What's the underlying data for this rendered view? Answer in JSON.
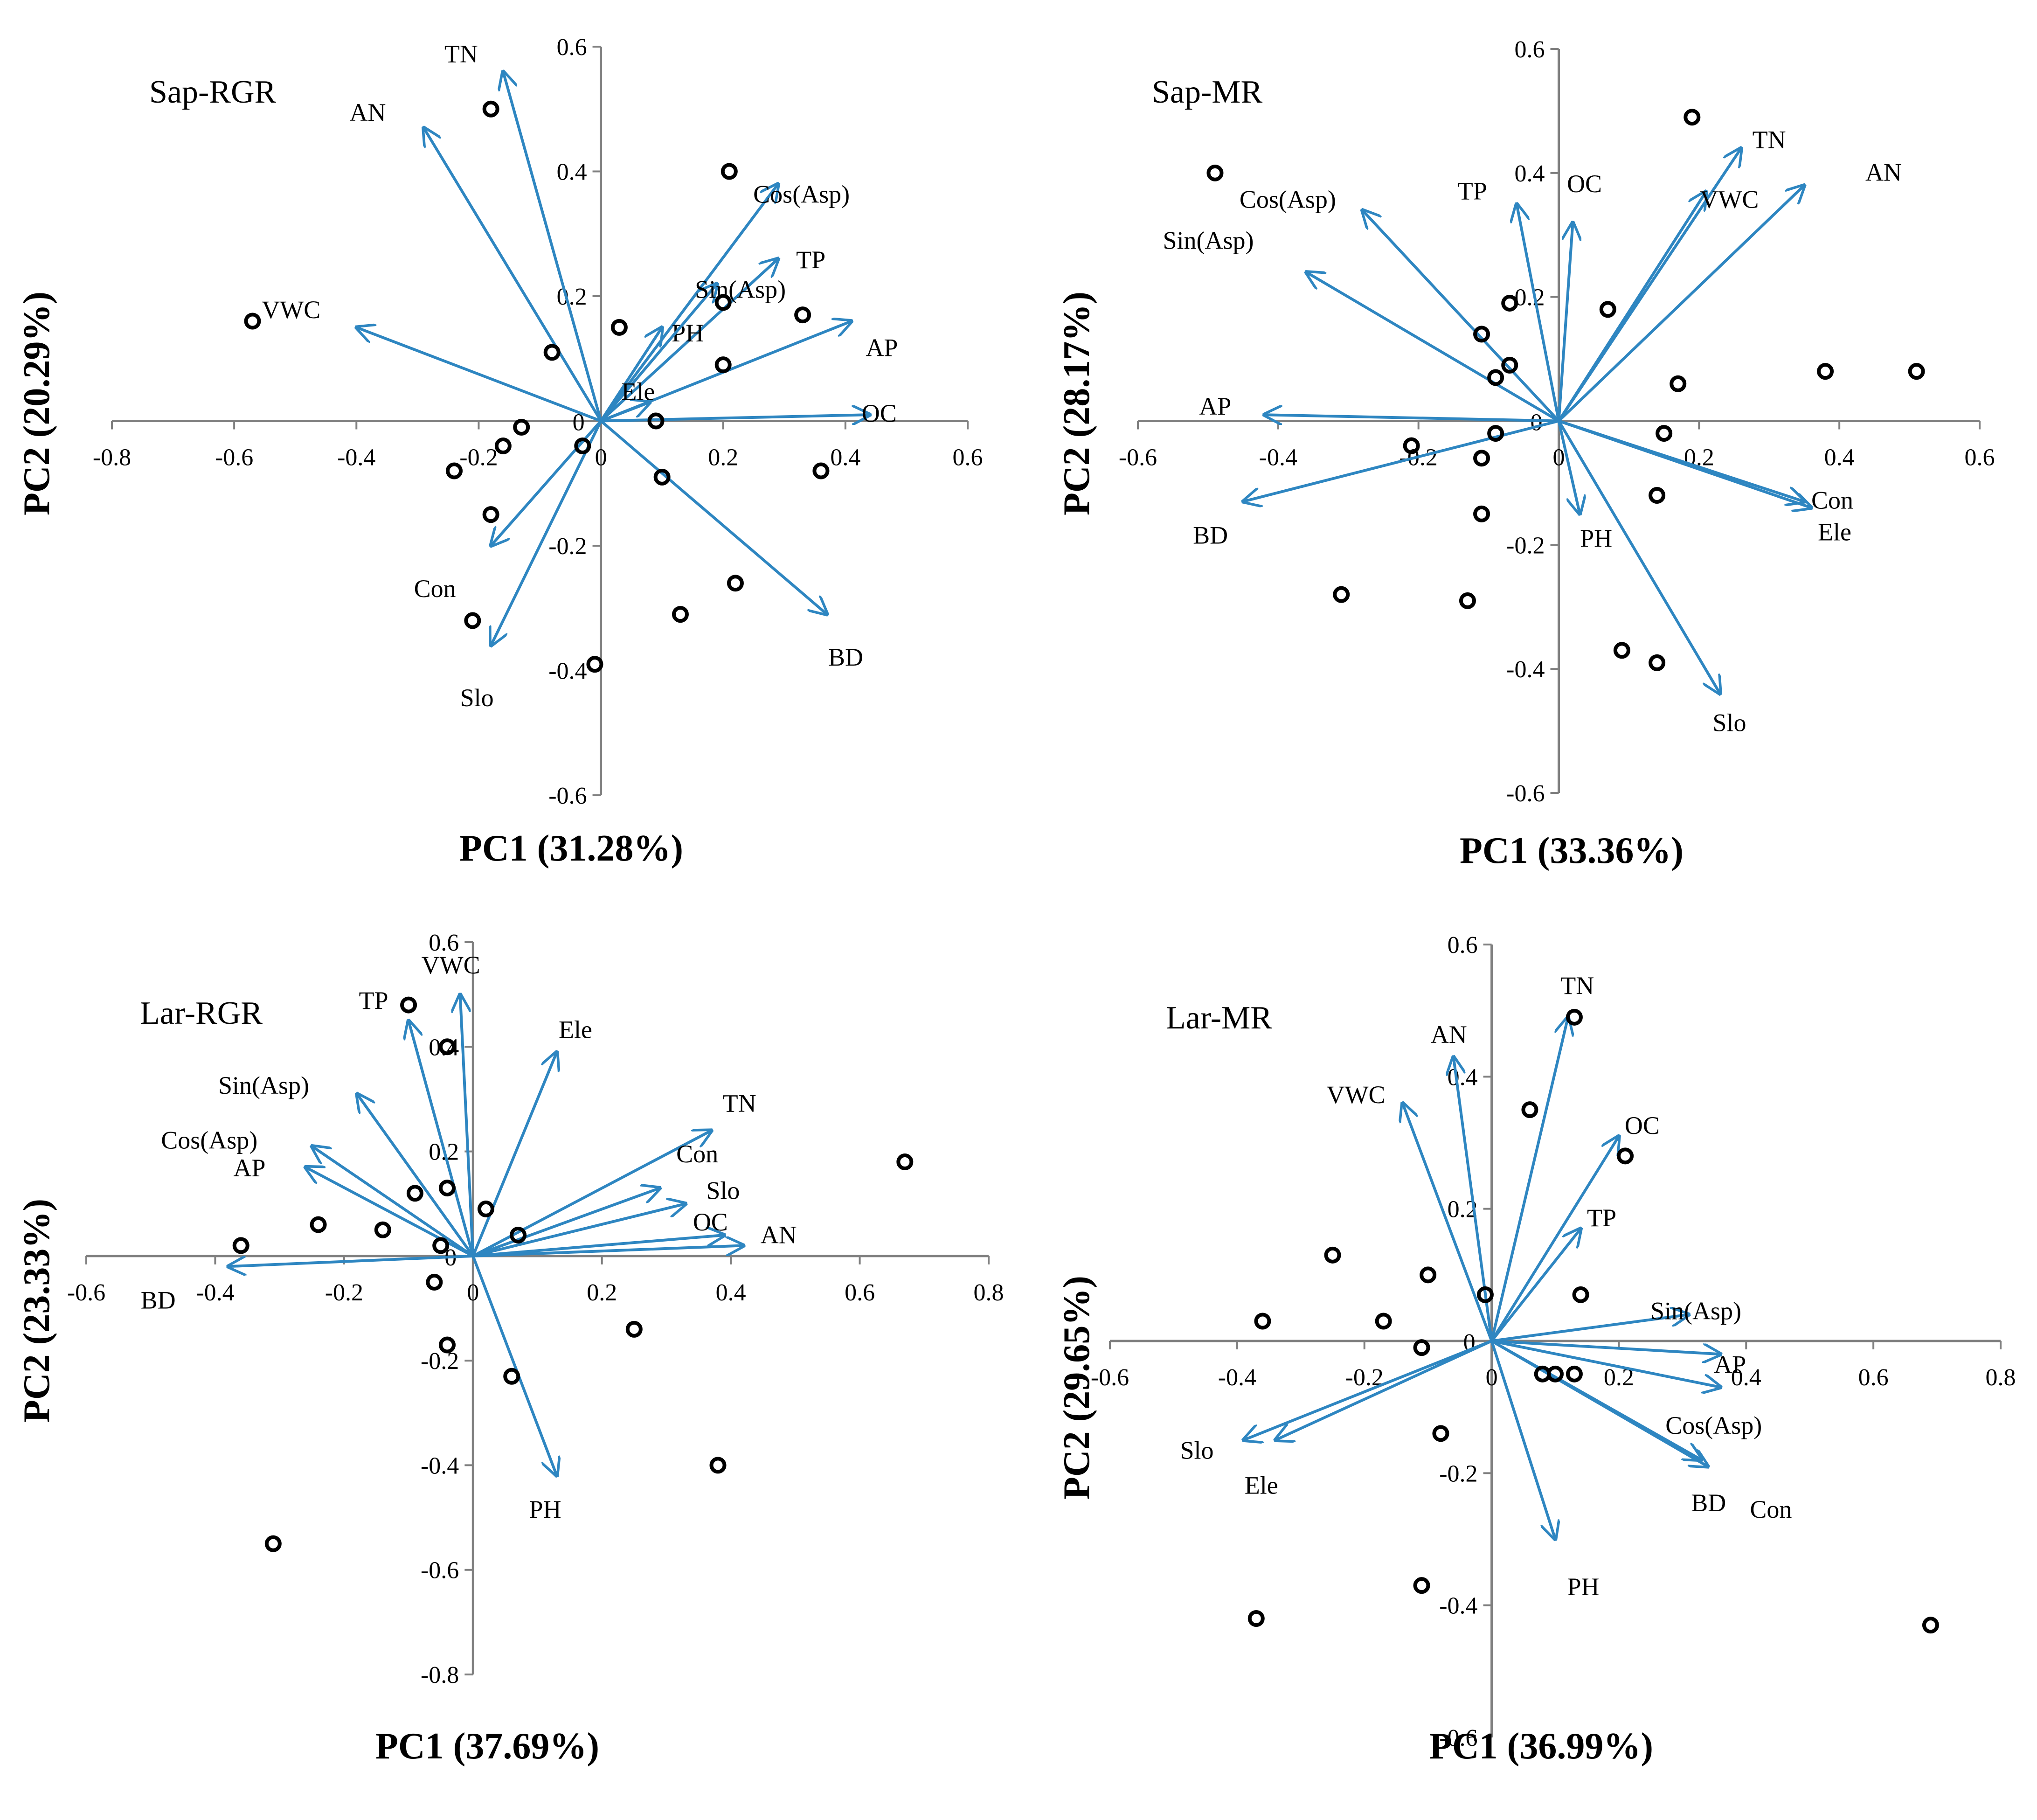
{
  "figure": {
    "arrow_color": "#2e86c1",
    "axis_color": "#808080",
    "point_color": "#000000"
  },
  "chart_data": [
    {
      "type": "scatter",
      "title": "Sap-RGR",
      "xlabel": "PC1 (31.28%)",
      "ylabel": "PC2 (20.29%)",
      "xlim": [
        -0.8,
        0.6
      ],
      "ylim": [
        -0.6,
        0.6
      ],
      "xticks": [
        -0.8,
        -0.6,
        -0.4,
        -0.2,
        0,
        0.2,
        0.4,
        0.6
      ],
      "yticks": [
        -0.6,
        -0.4,
        -0.2,
        0,
        0.2,
        0.4,
        0.6
      ],
      "xtick_labels": [
        "-0.8",
        "-0.6",
        "-0.4",
        "-0.2",
        "0",
        "0.2",
        "0.4",
        "0.6"
      ],
      "ytick_labels": [
        "-0.6",
        "-0.4",
        "-0.2",
        "0",
        "0.2",
        "0.4",
        "0.6"
      ],
      "loadings": [
        {
          "name": "TN",
          "x": -0.16,
          "y": 0.56
        },
        {
          "name": "AN",
          "x": -0.29,
          "y": 0.47
        },
        {
          "name": "Cos(Asp)",
          "x": 0.29,
          "y": 0.38
        },
        {
          "name": "TP",
          "x": 0.29,
          "y": 0.26
        },
        {
          "name": "PH",
          "x": 0.1,
          "y": 0.15
        },
        {
          "name": "Sin(Asp)",
          "x": 0.19,
          "y": 0.22
        },
        {
          "name": "AP",
          "x": 0.41,
          "y": 0.16
        },
        {
          "name": "OC",
          "x": 0.44,
          "y": 0.01
        },
        {
          "name": "Ele",
          "x": 0.08,
          "y": 0.03
        },
        {
          "name": "VWC",
          "x": -0.4,
          "y": 0.15
        },
        {
          "name": "Con",
          "x": -0.18,
          "y": -0.2
        },
        {
          "name": "Slo",
          "x": -0.18,
          "y": -0.36
        },
        {
          "name": "BD",
          "x": 0.37,
          "y": -0.31
        }
      ],
      "scores": [
        {
          "x": -0.18,
          "y": 0.5
        },
        {
          "x": 0.21,
          "y": 0.4
        },
        {
          "x": -0.57,
          "y": 0.16
        },
        {
          "x": 0.03,
          "y": 0.15
        },
        {
          "x": 0.2,
          "y": 0.19
        },
        {
          "x": 0.33,
          "y": 0.17
        },
        {
          "x": -0.08,
          "y": 0.11
        },
        {
          "x": 0.2,
          "y": 0.09
        },
        {
          "x": 0.09,
          "y": 0.0
        },
        {
          "x": -0.13,
          "y": -0.01
        },
        {
          "x": -0.16,
          "y": -0.04
        },
        {
          "x": -0.03,
          "y": -0.04
        },
        {
          "x": -0.24,
          "y": -0.08
        },
        {
          "x": 0.36,
          "y": -0.08
        },
        {
          "x": 0.1,
          "y": -0.09
        },
        {
          "x": -0.18,
          "y": -0.15
        },
        {
          "x": 0.22,
          "y": -0.26
        },
        {
          "x": 0.13,
          "y": -0.31
        },
        {
          "x": -0.21,
          "y": -0.32
        },
        {
          "x": -0.01,
          "y": -0.39
        }
      ]
    },
    {
      "type": "scatter",
      "title": "Sap-MR",
      "xlabel": "PC1 (33.36%)",
      "ylabel": "PC2 (28.17%)",
      "xlim": [
        -0.6,
        0.6
      ],
      "ylim": [
        -0.6,
        0.6
      ],
      "xticks": [
        -0.6,
        -0.4,
        -0.2,
        0,
        0.2,
        0.4,
        0.6
      ],
      "yticks": [
        -0.6,
        -0.4,
        -0.2,
        0,
        0.2,
        0.4,
        0.6
      ],
      "xtick_labels": [
        "-0.6",
        "-0.4",
        "-0.2",
        "0",
        "0.2",
        "0.4",
        "0.6"
      ],
      "ytick_labels": [
        "-0.6",
        "-0.4",
        "-0.2",
        "0",
        "0.2",
        "0.4",
        "0.6"
      ],
      "loadings": [
        {
          "name": "TN",
          "x": 0.26,
          "y": 0.44
        },
        {
          "name": "VWC",
          "x": 0.21,
          "y": 0.37
        },
        {
          "name": "AN",
          "x": 0.35,
          "y": 0.38
        },
        {
          "name": "OC",
          "x": 0.02,
          "y": 0.32
        },
        {
          "name": "TP",
          "x": -0.06,
          "y": 0.35
        },
        {
          "name": "Cos(Asp)",
          "x": -0.28,
          "y": 0.34
        },
        {
          "name": "Sin(Asp)",
          "x": -0.36,
          "y": 0.24
        },
        {
          "name": "AP",
          "x": -0.42,
          "y": 0.01
        },
        {
          "name": "BD",
          "x": -0.45,
          "y": -0.13
        },
        {
          "name": "PH",
          "x": 0.03,
          "y": -0.15
        },
        {
          "name": "Slo",
          "x": 0.23,
          "y": -0.44
        },
        {
          "name": "Con",
          "x": 0.35,
          "y": -0.13
        },
        {
          "name": "Ele",
          "x": 0.36,
          "y": -0.14
        }
      ],
      "scores": [
        {
          "x": 0.19,
          "y": 0.49
        },
        {
          "x": -0.49,
          "y": 0.4
        },
        {
          "x": -0.07,
          "y": 0.19
        },
        {
          "x": 0.07,
          "y": 0.18
        },
        {
          "x": -0.11,
          "y": 0.14
        },
        {
          "x": -0.07,
          "y": 0.09
        },
        {
          "x": -0.09,
          "y": 0.07
        },
        {
          "x": 0.17,
          "y": 0.06
        },
        {
          "x": 0.38,
          "y": 0.08
        },
        {
          "x": 0.51,
          "y": 0.08
        },
        {
          "x": -0.09,
          "y": -0.02
        },
        {
          "x": 0.15,
          "y": -0.02
        },
        {
          "x": -0.21,
          "y": -0.04
        },
        {
          "x": -0.11,
          "y": -0.06
        },
        {
          "x": 0.14,
          "y": -0.12
        },
        {
          "x": -0.11,
          "y": -0.15
        },
        {
          "x": -0.31,
          "y": -0.28
        },
        {
          "x": -0.13,
          "y": -0.29
        },
        {
          "x": 0.09,
          "y": -0.37
        },
        {
          "x": 0.14,
          "y": -0.39
        }
      ]
    },
    {
      "type": "scatter",
      "title": "Lar-RGR",
      "xlabel": "PC1 (37.69%)",
      "ylabel": "PC2 (23.33%)",
      "xlim": [
        -0.6,
        0.8
      ],
      "ylim": [
        -0.8,
        0.6
      ],
      "xticks": [
        -0.6,
        -0.4,
        -0.2,
        0,
        0.2,
        0.4,
        0.6,
        0.8
      ],
      "yticks": [
        -0.8,
        -0.6,
        -0.4,
        -0.2,
        0,
        0.2,
        0.4,
        0.6
      ],
      "xtick_labels": [
        "-0.6",
        "-0.4",
        "-0.2",
        "0",
        "0.2",
        "0.4",
        "0.6",
        "0.8"
      ],
      "ytick_labels": [
        "-0.8",
        "-0.6",
        "-0.4",
        "-0.2",
        "0",
        "0.2",
        "0.4",
        "0.6"
      ],
      "loadings": [
        {
          "name": "TP",
          "x": -0.1,
          "y": 0.45
        },
        {
          "name": "VWC",
          "x": -0.02,
          "y": 0.5
        },
        {
          "name": "Ele",
          "x": 0.13,
          "y": 0.39
        },
        {
          "name": "Sin(Asp)",
          "x": -0.18,
          "y": 0.31
        },
        {
          "name": "Cos(Asp)",
          "x": -0.25,
          "y": 0.21
        },
        {
          "name": "AP",
          "x": -0.26,
          "y": 0.17
        },
        {
          "name": "TN",
          "x": 0.37,
          "y": 0.24
        },
        {
          "name": "Con",
          "x": 0.29,
          "y": 0.13
        },
        {
          "name": "Slo",
          "x": 0.33,
          "y": 0.1
        },
        {
          "name": "OC",
          "x": 0.39,
          "y": 0.04
        },
        {
          "name": "AN",
          "x": 0.42,
          "y": 0.02
        },
        {
          "name": "BD",
          "x": -0.38,
          "y": -0.02
        },
        {
          "name": "PH",
          "x": 0.13,
          "y": -0.42
        }
      ],
      "scores": [
        {
          "x": -0.1,
          "y": 0.48
        },
        {
          "x": -0.04,
          "y": 0.4
        },
        {
          "x": 0.67,
          "y": 0.18
        },
        {
          "x": -0.09,
          "y": 0.12
        },
        {
          "x": -0.04,
          "y": 0.13
        },
        {
          "x": 0.02,
          "y": 0.09
        },
        {
          "x": -0.24,
          "y": 0.06
        },
        {
          "x": -0.14,
          "y": 0.05
        },
        {
          "x": 0.07,
          "y": 0.04
        },
        {
          "x": -0.36,
          "y": 0.02
        },
        {
          "x": -0.05,
          "y": 0.02
        },
        {
          "x": -0.06,
          "y": -0.05
        },
        {
          "x": 0.25,
          "y": -0.14
        },
        {
          "x": -0.04,
          "y": -0.17
        },
        {
          "x": 0.06,
          "y": -0.23
        },
        {
          "x": 0.38,
          "y": -0.4
        },
        {
          "x": -0.31,
          "y": -0.55
        }
      ]
    },
    {
      "type": "scatter",
      "title": "Lar-MR",
      "xlabel": "PC1 (36.99%)",
      "ylabel": "PC2 (29.65%)",
      "xlim": [
        -0.6,
        0.8
      ],
      "ylim": [
        -0.6,
        0.6
      ],
      "xticks": [
        -0.6,
        -0.4,
        -0.2,
        0,
        0.2,
        0.4,
        0.6,
        0.8
      ],
      "yticks": [
        -0.6,
        -0.4,
        -0.2,
        0,
        0.2,
        0.4,
        0.6
      ],
      "xtick_labels": [
        "-0.6",
        "-0.4",
        "-0.2",
        "0",
        "0.2",
        "0.4",
        "0.6",
        "0.8"
      ],
      "ytick_labels": [
        "-0.6",
        "-0.4",
        "-0.2",
        "0",
        "0.2",
        "0.4",
        "0.6"
      ],
      "loadings": [
        {
          "name": "TN",
          "x": 0.12,
          "y": 0.49
        },
        {
          "name": "AN",
          "x": -0.06,
          "y": 0.43
        },
        {
          "name": "VWC",
          "x": -0.14,
          "y": 0.36
        },
        {
          "name": "OC",
          "x": 0.2,
          "y": 0.31
        },
        {
          "name": "TP",
          "x": 0.14,
          "y": 0.17
        },
        {
          "name": "Sin(Asp)",
          "x": 0.31,
          "y": 0.04
        },
        {
          "name": "AP",
          "x": 0.36,
          "y": -0.02
        },
        {
          "name": "Cos(Asp)",
          "x": 0.36,
          "y": -0.07
        },
        {
          "name": "BD",
          "x": 0.33,
          "y": -0.18
        },
        {
          "name": "Con",
          "x": 0.34,
          "y": -0.19
        },
        {
          "name": "PH",
          "x": 0.1,
          "y": -0.3
        },
        {
          "name": "Slo",
          "x": -0.39,
          "y": -0.15
        },
        {
          "name": "Ele",
          "x": -0.34,
          "y": -0.15
        }
      ],
      "scores": [
        {
          "x": 0.13,
          "y": 0.49
        },
        {
          "x": 0.06,
          "y": 0.35
        },
        {
          "x": 0.21,
          "y": 0.28
        },
        {
          "x": -0.25,
          "y": 0.13
        },
        {
          "x": -0.1,
          "y": 0.1
        },
        {
          "x": -0.01,
          "y": 0.07
        },
        {
          "x": 0.14,
          "y": 0.07
        },
        {
          "x": -0.36,
          "y": 0.03
        },
        {
          "x": -0.17,
          "y": 0.03
        },
        {
          "x": -0.11,
          "y": -0.01
        },
        {
          "x": 0.08,
          "y": -0.05
        },
        {
          "x": 0.1,
          "y": -0.05
        },
        {
          "x": 0.13,
          "y": -0.05
        },
        {
          "x": -0.08,
          "y": -0.14
        },
        {
          "x": -0.11,
          "y": -0.37
        },
        {
          "x": -0.37,
          "y": -0.42
        },
        {
          "x": 0.69,
          "y": -0.43
        }
      ]
    }
  ]
}
